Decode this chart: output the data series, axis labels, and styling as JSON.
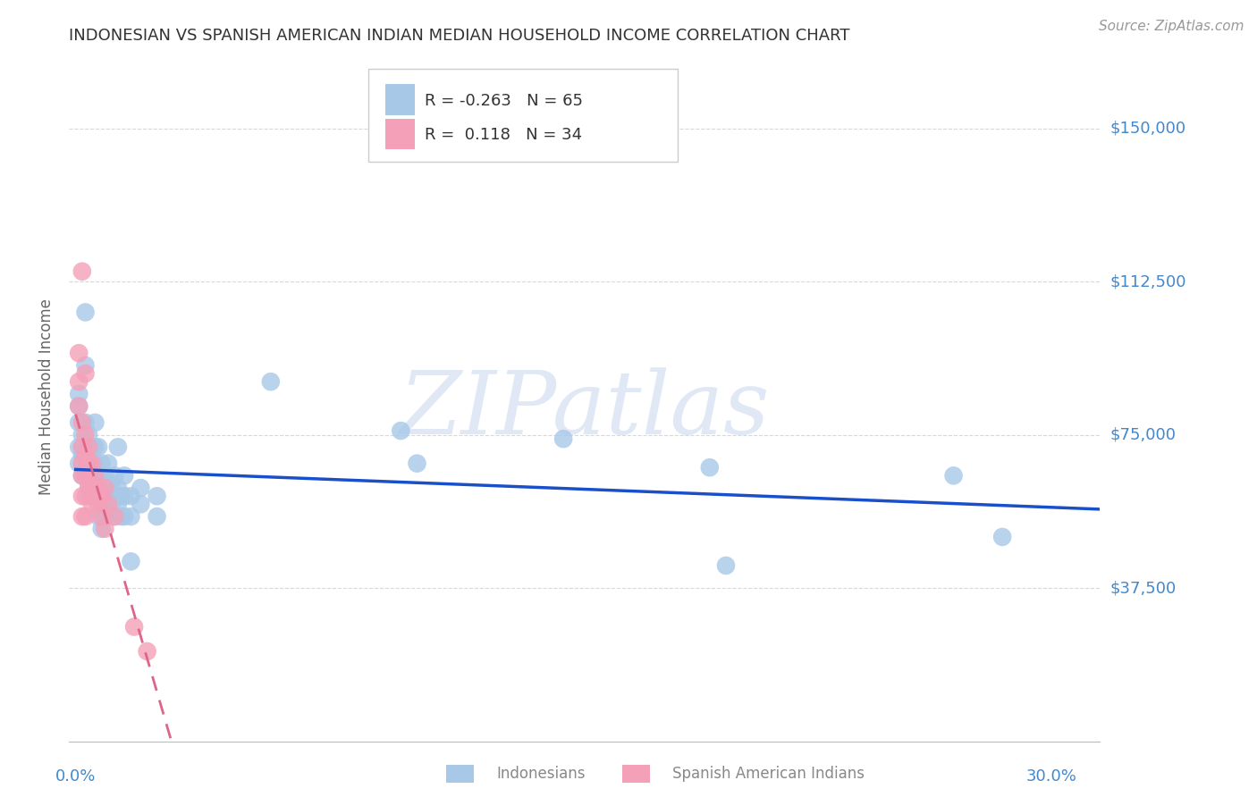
{
  "title": "INDONESIAN VS SPANISH AMERICAN INDIAN MEDIAN HOUSEHOLD INCOME CORRELATION CHART",
  "source": "Source: ZipAtlas.com",
  "ylabel": "Median Household Income",
  "yticks": [
    37500,
    75000,
    112500,
    150000
  ],
  "ytick_labels": [
    "$37,500",
    "$75,000",
    "$112,500",
    "$150,000"
  ],
  "ymin": 0,
  "ymax": 168750,
  "xmin": -0.002,
  "xmax": 0.315,
  "xtick_positions": [
    0.0,
    0.05,
    0.1,
    0.15,
    0.2,
    0.25,
    0.3
  ],
  "watermark": "ZIPatlas",
  "indonesian_color": "#a8c8e8",
  "spanish_color": "#f4a0b8",
  "indonesian_line_color": "#1a4fcc",
  "spanish_line_color": "#dd6688",
  "indonesian_scatter": [
    [
      0.001,
      68000
    ],
    [
      0.001,
      72000
    ],
    [
      0.001,
      78000
    ],
    [
      0.001,
      82000
    ],
    [
      0.001,
      85000
    ],
    [
      0.002,
      75000
    ],
    [
      0.002,
      70000
    ],
    [
      0.002,
      68000
    ],
    [
      0.002,
      65000
    ],
    [
      0.002,
      72000
    ],
    [
      0.003,
      105000
    ],
    [
      0.003,
      92000
    ],
    [
      0.003,
      78000
    ],
    [
      0.003,
      72000
    ],
    [
      0.003,
      68000
    ],
    [
      0.003,
      65000
    ],
    [
      0.004,
      75000
    ],
    [
      0.004,
      70000
    ],
    [
      0.004,
      65000
    ],
    [
      0.004,
      62000
    ],
    [
      0.005,
      72000
    ],
    [
      0.005,
      68000
    ],
    [
      0.005,
      63000
    ],
    [
      0.005,
      60000
    ],
    [
      0.006,
      78000
    ],
    [
      0.006,
      72000
    ],
    [
      0.006,
      68000
    ],
    [
      0.006,
      63000
    ],
    [
      0.006,
      60000
    ],
    [
      0.007,
      72000
    ],
    [
      0.007,
      65000
    ],
    [
      0.007,
      60000
    ],
    [
      0.007,
      55000
    ],
    [
      0.008,
      68000
    ],
    [
      0.008,
      62000
    ],
    [
      0.008,
      58000
    ],
    [
      0.008,
      52000
    ],
    [
      0.009,
      65000
    ],
    [
      0.009,
      60000
    ],
    [
      0.009,
      55000
    ],
    [
      0.01,
      68000
    ],
    [
      0.01,
      62000
    ],
    [
      0.01,
      58000
    ],
    [
      0.011,
      63000
    ],
    [
      0.011,
      58000
    ],
    [
      0.012,
      65000
    ],
    [
      0.012,
      60000
    ],
    [
      0.012,
      55000
    ],
    [
      0.013,
      72000
    ],
    [
      0.013,
      62000
    ],
    [
      0.013,
      58000
    ],
    [
      0.014,
      60000
    ],
    [
      0.014,
      55000
    ],
    [
      0.015,
      65000
    ],
    [
      0.015,
      60000
    ],
    [
      0.015,
      55000
    ],
    [
      0.017,
      60000
    ],
    [
      0.017,
      55000
    ],
    [
      0.017,
      44000
    ],
    [
      0.02,
      62000
    ],
    [
      0.02,
      58000
    ],
    [
      0.025,
      60000
    ],
    [
      0.025,
      55000
    ],
    [
      0.06,
      88000
    ],
    [
      0.1,
      76000
    ],
    [
      0.105,
      68000
    ],
    [
      0.15,
      74000
    ],
    [
      0.195,
      67000
    ],
    [
      0.2,
      43000
    ],
    [
      0.27,
      65000
    ],
    [
      0.285,
      50000
    ]
  ],
  "spanish_scatter": [
    [
      0.001,
      95000
    ],
    [
      0.001,
      88000
    ],
    [
      0.001,
      82000
    ],
    [
      0.002,
      115000
    ],
    [
      0.002,
      78000
    ],
    [
      0.002,
      72000
    ],
    [
      0.002,
      68000
    ],
    [
      0.002,
      65000
    ],
    [
      0.002,
      60000
    ],
    [
      0.002,
      55000
    ],
    [
      0.003,
      90000
    ],
    [
      0.003,
      75000
    ],
    [
      0.003,
      70000
    ],
    [
      0.003,
      65000
    ],
    [
      0.003,
      60000
    ],
    [
      0.003,
      55000
    ],
    [
      0.004,
      72000
    ],
    [
      0.004,
      68000
    ],
    [
      0.004,
      63000
    ],
    [
      0.005,
      68000
    ],
    [
      0.005,
      62000
    ],
    [
      0.005,
      58000
    ],
    [
      0.006,
      65000
    ],
    [
      0.006,
      60000
    ],
    [
      0.007,
      62000
    ],
    [
      0.007,
      58000
    ],
    [
      0.008,
      60000
    ],
    [
      0.008,
      55000
    ],
    [
      0.009,
      62000
    ],
    [
      0.009,
      52000
    ],
    [
      0.01,
      58000
    ],
    [
      0.012,
      55000
    ],
    [
      0.018,
      28000
    ],
    [
      0.022,
      22000
    ]
  ],
  "background_color": "#ffffff",
  "grid_color": "#d8d8d8",
  "axis_label_color": "#4488cc",
  "title_color": "#333333",
  "source_color": "#999999"
}
